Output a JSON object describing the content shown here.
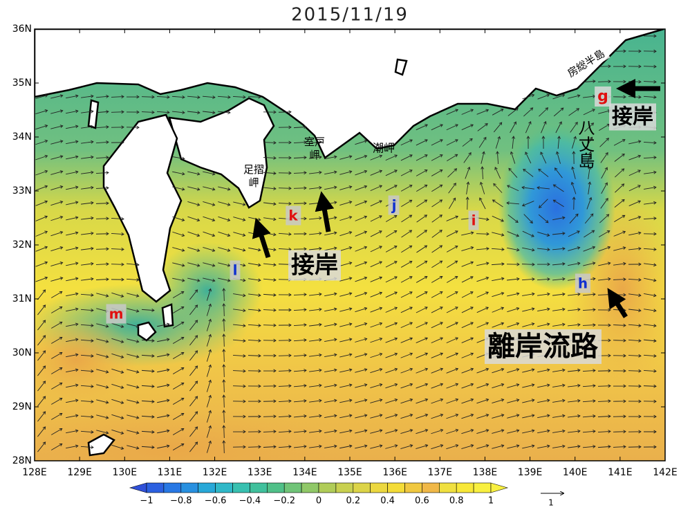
{
  "title": "2015/11/19",
  "map": {
    "lon_labels": [
      "128E",
      "129E",
      "130E",
      "131E",
      "132E",
      "133E",
      "134E",
      "135E",
      "136E",
      "137E",
      "138E",
      "139E",
      "140E",
      "141E",
      "142E"
    ],
    "lat_labels": [
      "28N",
      "29N",
      "30N",
      "31N",
      "32N",
      "33N",
      "34N",
      "35N",
      "36N"
    ]
  },
  "annotations": [
    {
      "text": "房総半島",
      "color": "#000000"
    },
    {
      "text": "g",
      "color": "#e01010"
    },
    {
      "text": "接岸",
      "color": "#000000"
    },
    {
      "text": "八丈島",
      "color": "#000000"
    },
    {
      "lines": [
        "足摺",
        "岬"
      ],
      "color": "#000000"
    },
    {
      "lines": [
        "室戸",
        "岬"
      ],
      "color": "#000000"
    },
    {
      "text": "潮岬",
      "color": "#000000"
    },
    {
      "text": "k",
      "color": "#e01010"
    },
    {
      "text": "j",
      "color": "#1030d0"
    },
    {
      "text": "i",
      "color": "#e01010"
    },
    {
      "text": "接岸",
      "color": "#000000"
    },
    {
      "text": "l",
      "color": "#1030d0"
    },
    {
      "text": "h",
      "color": "#1030d0"
    },
    {
      "text": "m",
      "color": "#e01010"
    },
    {
      "text": "離岸流路",
      "color": "#000000"
    }
  ],
  "colorbar": {
    "labels": [
      "−1",
      "−0.8",
      "−0.6",
      "−0.4",
      "−0.2",
      "0",
      "0.2",
      "0.4",
      "0.6",
      "0.8",
      "1"
    ],
    "colors": [
      "#3050d8",
      "#2c60e0",
      "#2878e4",
      "#2890e0",
      "#28a8d8",
      "#30b8c8",
      "#38c0b0",
      "#40c09c",
      "#50c088",
      "#70c478",
      "#90c868",
      "#b0cc58",
      "#c8d050",
      "#dcd448",
      "#ecd840",
      "#f4dc38",
      "#f0c840",
      "#f0b848",
      "#f0e040",
      "#f8e838",
      "#f8f040",
      "#f8f040"
    ],
    "reference_vector": "1"
  }
}
